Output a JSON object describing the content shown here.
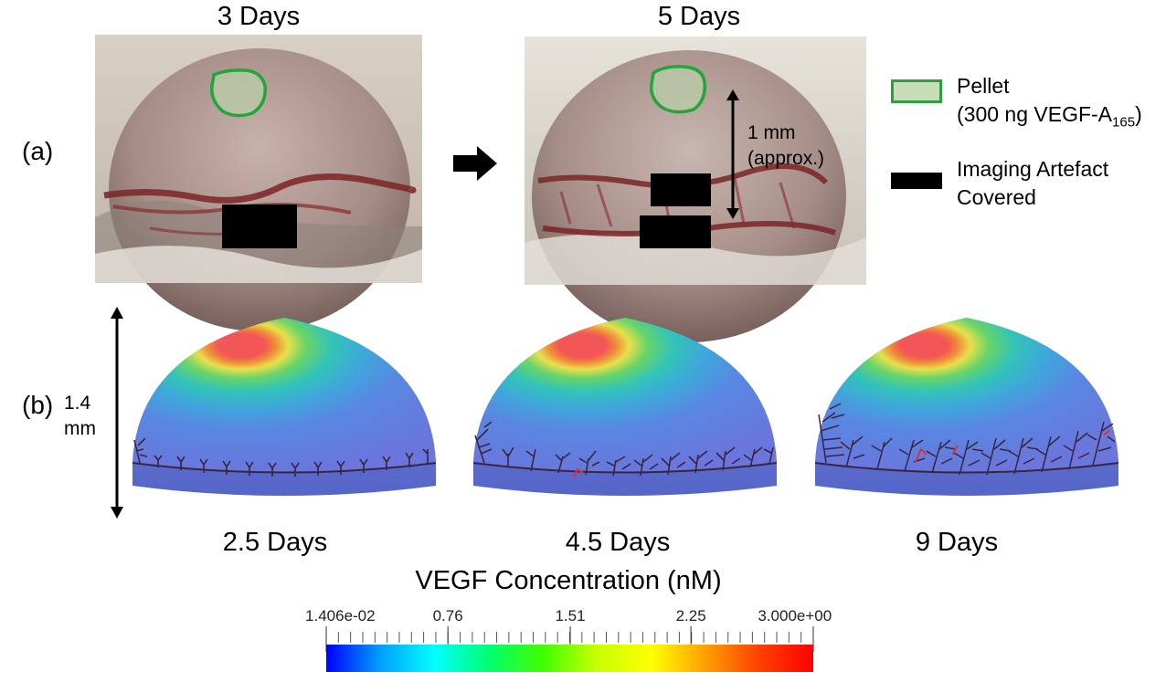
{
  "panel_a": {
    "label": "(a)",
    "titles": [
      "3 Days",
      "5 Days"
    ],
    "scale_bar": {
      "line1": "1 mm",
      "line2": "(approx.)"
    }
  },
  "legend": {
    "pellet_line1": "Pellet",
    "pellet_line2_prefix": "(300 ng VEGF-A",
    "pellet_line2_sub": "165",
    "pellet_line2_suffix": ")",
    "artefact_line1": "Imaging Artefact",
    "artefact_line2": "Covered",
    "pellet_color": "#2e9e3e",
    "artefact_color": "#000000"
  },
  "panel_b": {
    "label": "(b)",
    "height_line1": "1.4",
    "height_line2": "mm",
    "captions": [
      "2.5 Days",
      "4.5 Days",
      "9 Days"
    ]
  },
  "colorbar": {
    "title": "VEGF Concentration (nM)",
    "min": 0.01406,
    "max": 3.0,
    "tick_labels": [
      "1.406e-02",
      "0.76",
      "1.51",
      "2.25",
      "3.000e+00"
    ],
    "tick_values": [
      0.01406,
      0.76,
      1.51,
      2.25,
      3.0
    ],
    "colormap": [
      "#0000ff",
      "#00a0ff",
      "#00ffff",
      "#00ff70",
      "#40ff00",
      "#c8ff00",
      "#ffff00",
      "#ffa000",
      "#ff4000",
      "#ff0000"
    ]
  }
}
